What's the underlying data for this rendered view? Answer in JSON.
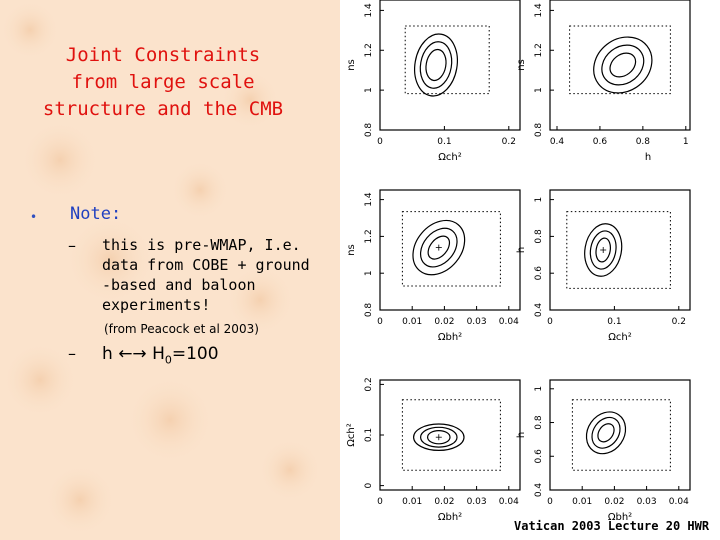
{
  "slide": {
    "title_lines": [
      "Joint Constraints",
      "from large scale",
      "structure and the CMB"
    ],
    "bullet": "•",
    "note_heading": "Note:",
    "dash": "–",
    "note_lines": [
      "this is pre-WMAP, I.e.",
      "data from COBE + ground",
      "-based and baloon",
      "experiments!"
    ],
    "source": "(from Peacock et al 2003)",
    "h_prefix": "h ",
    "h_arrow": "←→",
    "h_sym": " H",
    "h_sub": "0",
    "h_suffix": "=100",
    "footer": "Vatican 2003 Lecture 20 HWR"
  },
  "figure": {
    "panels": [
      {
        "xlabel": "Ω_c h²",
        "ylabel": "n_s",
        "xticks": [
          "0",
          "0.1",
          "0.2"
        ],
        "yticks": [
          "0.8",
          "1",
          "1.2",
          "1.4"
        ]
      },
      {
        "xlabel": "h",
        "ylabel": "n_s",
        "xticks": [
          "0.4",
          "0.6",
          "0.8",
          "1"
        ],
        "yticks": [
          "0.8",
          "1",
          "1.2",
          "1.4"
        ]
      },
      {
        "xlabel": "Ω_b h²",
        "ylabel": "n_s",
        "xticks": [
          "0",
          "0.01",
          "0.02",
          "0.03",
          "0.04"
        ],
        "yticks": [
          "0.8",
          "1",
          "1.2",
          "1.4"
        ]
      },
      {
        "xlabel": "Ω_c h²",
        "ylabel": "h",
        "xticks": [
          "0",
          "0.1",
          "0.2"
        ],
        "yticks": [
          "0.4",
          "0.6",
          "0.8",
          "1"
        ]
      },
      {
        "xlabel": "Ω_b h²",
        "ylabel": "Ω_c h²",
        "xticks": [
          "0",
          "0.01",
          "0.02",
          "0.03",
          "0.04"
        ],
        "yticks": [
          "0",
          "0.1",
          "0.2"
        ]
      },
      {
        "xlabel": "Ω_b h²",
        "ylabel": "h",
        "xticks": [
          "0",
          "0.01",
          "0.02",
          "0.03",
          "0.04"
        ],
        "yticks": [
          "0.4",
          "0.6",
          "0.8",
          "1"
        ]
      }
    ]
  }
}
